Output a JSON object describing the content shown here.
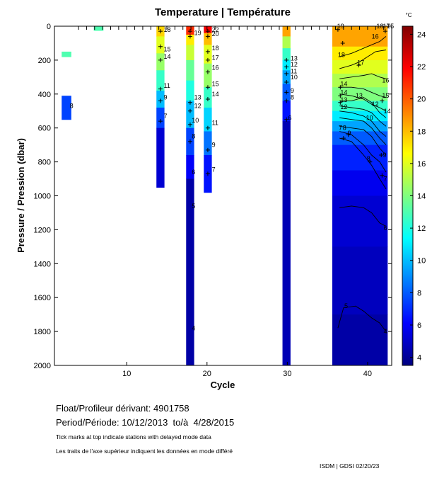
{
  "chart_data": {
    "type": "heatmap",
    "title": "Temperature | Température",
    "xlabel": "Cycle",
    "ylabel": "Pressure / Pression (dbar)",
    "xlim": [
      1,
      43
    ],
    "ylim": [
      0,
      2000
    ],
    "y_inverted": true,
    "x_ticks": [
      10,
      20,
      30,
      40
    ],
    "y_ticks": [
      0,
      200,
      400,
      600,
      800,
      1000,
      1200,
      1400,
      1600,
      1800,
      2000
    ],
    "colorbar": {
      "unit": "°C",
      "range": [
        3.5,
        24.5
      ],
      "ticks": [
        4,
        6,
        8,
        10,
        12,
        14,
        16,
        18,
        20,
        22,
        24
      ],
      "colors": [
        "#00007f",
        "#0000ff",
        "#007fff",
        "#00ffff",
        "#7fff7f",
        "#ffff00",
        "#ff7f00",
        "#ff0000",
        "#7f0000"
      ]
    },
    "delayed_mode_cycles": [
      4,
      5,
      6,
      7,
      8,
      9,
      10,
      11,
      12,
      13,
      14,
      15,
      16,
      17,
      18,
      19,
      20,
      21,
      22,
      23,
      24,
      25,
      26,
      27,
      28,
      29,
      30,
      31,
      32,
      33,
      34,
      35,
      36,
      37,
      38,
      39,
      40,
      41,
      42,
      43
    ],
    "profiles": [
      {
        "cycle": 2.5,
        "width": 1.2,
        "bins": [
          [
            150,
            180,
            13
          ]
        ]
      },
      {
        "cycle": 2.5,
        "width": 1.2,
        "bins": [
          [
            410,
            550,
            7.5
          ]
        ]
      },
      {
        "cycle": 6.5,
        "width": 1.2,
        "bins": [
          [
            0,
            25,
            13
          ]
        ]
      },
      {
        "cycle": 14.2,
        "width": 1.0,
        "bins": [
          [
            0,
            60,
            17.5
          ],
          [
            60,
            160,
            16
          ],
          [
            160,
            260,
            14.5
          ],
          [
            260,
            380,
            12.5
          ],
          [
            380,
            480,
            10
          ],
          [
            480,
            600,
            7.5
          ],
          [
            600,
            950,
            5.2
          ]
        ]
      },
      {
        "cycle": 17.9,
        "width": 1.0,
        "bins": [
          [
            0,
            50,
            21
          ],
          [
            50,
            110,
            17
          ],
          [
            110,
            200,
            15.5
          ],
          [
            200,
            320,
            13.5
          ],
          [
            320,
            440,
            12
          ],
          [
            440,
            600,
            10
          ],
          [
            600,
            760,
            7.5
          ],
          [
            760,
            900,
            6
          ],
          [
            900,
            2000,
            4.3
          ]
        ]
      },
      {
        "cycle": 20.1,
        "width": 1.0,
        "bins": [
          [
            0,
            40,
            22
          ],
          [
            40,
            110,
            18
          ],
          [
            110,
            220,
            16
          ],
          [
            220,
            360,
            14.5
          ],
          [
            360,
            480,
            12.5
          ],
          [
            480,
            620,
            10.5
          ],
          [
            620,
            760,
            8.5
          ],
          [
            760,
            980,
            6.5
          ]
        ]
      },
      {
        "cycle": 29.9,
        "width": 1.0,
        "bins": [
          [
            0,
            60,
            18.5
          ],
          [
            60,
            130,
            15
          ],
          [
            130,
            200,
            12.5
          ],
          [
            200,
            260,
            11
          ],
          [
            260,
            340,
            9.5
          ],
          [
            340,
            440,
            8
          ],
          [
            440,
            560,
            6.5
          ],
          [
            560,
            2000,
            4.6
          ]
        ]
      }
    ],
    "surface_section": {
      "x_start": 35.6,
      "x_end": 42.5,
      "layers": [
        {
          "top": 0,
          "bottom": 120,
          "temp": 18.5
        },
        {
          "top": 120,
          "bottom": 200,
          "temp": 17
        },
        {
          "top": 200,
          "bottom": 280,
          "temp": 16
        },
        {
          "top": 280,
          "bottom": 360,
          "temp": 15
        },
        {
          "top": 360,
          "bottom": 440,
          "temp": 14
        },
        {
          "top": 440,
          "bottom": 500,
          "temp": 12.5
        },
        {
          "top": 500,
          "bottom": 560,
          "temp": 11
        },
        {
          "top": 560,
          "bottom": 620,
          "temp": 9.5
        },
        {
          "top": 620,
          "bottom": 700,
          "temp": 8
        },
        {
          "top": 700,
          "bottom": 850,
          "temp": 6.8
        },
        {
          "top": 850,
          "bottom": 1000,
          "temp": 5.8
        },
        {
          "top": 1000,
          "bottom": 1300,
          "temp": 5.2
        },
        {
          "top": 1300,
          "bottom": 1700,
          "temp": 4.8
        },
        {
          "top": 1700,
          "bottom": 2000,
          "temp": 4.3
        }
      ]
    },
    "contours": [
      {
        "level": 18,
        "points": [
          [
            36.5,
            180
          ],
          [
            38,
            160
          ],
          [
            39.5,
            130
          ],
          [
            40.5,
            110
          ],
          [
            41.5,
            90
          ],
          [
            42.3,
            60
          ]
        ]
      },
      {
        "level": 17,
        "points": [
          [
            36.5,
            250
          ],
          [
            38,
            230
          ],
          [
            39,
            210
          ],
          [
            40,
            180
          ],
          [
            41,
            150
          ],
          [
            42.3,
            140
          ]
        ]
      },
      {
        "level": 16,
        "points": [
          [
            36.5,
            310
          ],
          [
            38,
            300
          ],
          [
            39.5,
            290
          ],
          [
            40.5,
            280
          ],
          [
            41.5,
            300
          ],
          [
            42.3,
            310
          ]
        ]
      },
      {
        "level": 15,
        "points": [
          [
            36.5,
            360
          ],
          [
            38,
            360
          ],
          [
            39.5,
            370
          ],
          [
            40.5,
            390
          ],
          [
            41.5,
            410
          ],
          [
            42.3,
            420
          ]
        ]
      },
      {
        "level": 14,
        "points": [
          [
            36.5,
            400
          ],
          [
            38,
            410
          ],
          [
            39.5,
            430
          ],
          [
            40.5,
            460
          ],
          [
            41.5,
            480
          ],
          [
            42.3,
            500
          ]
        ]
      },
      {
        "level": 13,
        "points": [
          [
            36.5,
            440
          ],
          [
            38,
            440
          ],
          [
            39.5,
            420
          ],
          [
            40.5,
            450
          ],
          [
            41.5,
            510
          ],
          [
            42.3,
            540
          ]
        ]
      },
      {
        "level": 12,
        "points": [
          [
            36.5,
            470
          ],
          [
            38,
            480
          ],
          [
            39.5,
            490
          ],
          [
            40.5,
            510
          ],
          [
            41.5,
            560
          ],
          [
            42.3,
            590
          ]
        ]
      },
      {
        "level": 11,
        "points": [
          [
            36.5,
            500
          ],
          [
            38,
            510
          ],
          [
            39.5,
            530
          ],
          [
            40.5,
            560
          ],
          [
            41.5,
            620
          ],
          [
            42.3,
            650
          ]
        ]
      },
      {
        "level": 10,
        "points": [
          [
            36.5,
            540
          ],
          [
            38,
            550
          ],
          [
            39.5,
            560
          ],
          [
            40.5,
            600
          ],
          [
            41.5,
            660
          ],
          [
            42.3,
            700
          ]
        ]
      },
      {
        "level": 9,
        "points": [
          [
            36.5,
            590
          ],
          [
            38,
            600
          ],
          [
            39.5,
            610
          ],
          [
            40.5,
            650
          ],
          [
            41.5,
            720
          ],
          [
            42.3,
            760
          ]
        ]
      },
      {
        "level": 8,
        "points": [
          [
            36.5,
            620
          ],
          [
            38,
            640
          ],
          [
            39.5,
            700
          ],
          [
            40.5,
            760
          ],
          [
            41.5,
            800
          ],
          [
            42.3,
            860
          ]
        ]
      },
      {
        "level": 7,
        "points": [
          [
            36.5,
            660
          ],
          [
            38,
            680
          ],
          [
            39.5,
            760
          ],
          [
            40.5,
            820
          ],
          [
            41.5,
            900
          ],
          [
            42.3,
            960
          ]
        ]
      },
      {
        "level": 6,
        "points": [
          [
            36.5,
            1070
          ],
          [
            38,
            1060
          ],
          [
            39.5,
            1070
          ],
          [
            40.5,
            1100
          ],
          [
            41.5,
            1160
          ],
          [
            42.3,
            1180
          ]
        ]
      },
      {
        "level": 5,
        "points": [
          [
            36.3,
            1780
          ],
          [
            37,
            1660
          ],
          [
            38.5,
            1650
          ],
          [
            39.5,
            1680
          ],
          [
            40.5,
            1720
          ],
          [
            41.5,
            1750
          ],
          [
            42.3,
            1800
          ]
        ]
      }
    ],
    "plot_labels": [
      {
        "x": 2.9,
        "y": 470,
        "text": "8"
      },
      {
        "x": 14.6,
        "y": 20,
        "text": "18"
      },
      {
        "x": 14.6,
        "y": 135,
        "text": "15"
      },
      {
        "x": 14.6,
        "y": 180,
        "text": "14"
      },
      {
        "x": 14.6,
        "y": 350,
        "text": "11"
      },
      {
        "x": 14.6,
        "y": 420,
        "text": "9"
      },
      {
        "x": 14.6,
        "y": 530,
        "text": "7"
      },
      {
        "x": 18.4,
        "y": 40,
        "text": "19"
      },
      {
        "x": 18.4,
        "y": 420,
        "text": "13"
      },
      {
        "x": 18.4,
        "y": 470,
        "text": "12"
      },
      {
        "x": 18.1,
        "y": 555,
        "text": "10"
      },
      {
        "x": 18.1,
        "y": 650,
        "text": "8"
      },
      {
        "x": 18.1,
        "y": 860,
        "text": "6"
      },
      {
        "x": 18.1,
        "y": 1060,
        "text": "5"
      },
      {
        "x": 18.1,
        "y": 1780,
        "text": "4"
      },
      {
        "x": 20.6,
        "y": 20,
        "text": "22"
      },
      {
        "x": 20.6,
        "y": 45,
        "text": "20"
      },
      {
        "x": 20.6,
        "y": 130,
        "text": "18"
      },
      {
        "x": 20.6,
        "y": 185,
        "text": "17"
      },
      {
        "x": 20.6,
        "y": 245,
        "text": "16"
      },
      {
        "x": 20.6,
        "y": 340,
        "text": "15"
      },
      {
        "x": 20.6,
        "y": 400,
        "text": "14"
      },
      {
        "x": 20.6,
        "y": 570,
        "text": "11"
      },
      {
        "x": 20.6,
        "y": 700,
        "text": "9"
      },
      {
        "x": 20.6,
        "y": 845,
        "text": "7"
      },
      {
        "x": 30.4,
        "y": 190,
        "text": "13"
      },
      {
        "x": 30.4,
        "y": 225,
        "text": "12"
      },
      {
        "x": 30.4,
        "y": 265,
        "text": "11"
      },
      {
        "x": 30.4,
        "y": 300,
        "text": "10"
      },
      {
        "x": 30.4,
        "y": 380,
        "text": "9"
      },
      {
        "x": 30.4,
        "y": 420,
        "text": "8"
      },
      {
        "x": 30.1,
        "y": 540,
        "text": "6"
      },
      {
        "x": 36.2,
        "y": 0,
        "text": "19"
      },
      {
        "x": 36.3,
        "y": 170,
        "text": "18"
      },
      {
        "x": 38.7,
        "y": 215,
        "text": "17"
      },
      {
        "x": 36.6,
        "y": 340,
        "text": "14"
      },
      {
        "x": 36.6,
        "y": 390,
        "text": "14"
      },
      {
        "x": 36.6,
        "y": 435,
        "text": "13"
      },
      {
        "x": 36.6,
        "y": 475,
        "text": "12"
      },
      {
        "x": 38.5,
        "y": 410,
        "text": "13"
      },
      {
        "x": 40.5,
        "y": 460,
        "text": "12"
      },
      {
        "x": 39.8,
        "y": 540,
        "text": "10"
      },
      {
        "x": 41.8,
        "y": 320,
        "text": "16"
      },
      {
        "x": 41.8,
        "y": 410,
        "text": "15"
      },
      {
        "x": 42.0,
        "y": 500,
        "text": "14"
      },
      {
        "x": 36.4,
        "y": 600,
        "text": "7"
      },
      {
        "x": 36.9,
        "y": 600,
        "text": "8"
      },
      {
        "x": 37.5,
        "y": 630,
        "text": "9"
      },
      {
        "x": 39.9,
        "y": 780,
        "text": "8"
      },
      {
        "x": 41.9,
        "y": 760,
        "text": "9"
      },
      {
        "x": 42.0,
        "y": 900,
        "text": "7"
      },
      {
        "x": 42.0,
        "y": 1190,
        "text": "6"
      },
      {
        "x": 37.1,
        "y": 1650,
        "text": "5"
      },
      {
        "x": 42.0,
        "y": 1800,
        "text": "4"
      },
      {
        "x": 41.1,
        "y": 0,
        "text": "18"
      },
      {
        "x": 41.9,
        "y": 0,
        "text": "17"
      },
      {
        "x": 42.4,
        "y": 0,
        "text": "15"
      },
      {
        "x": 40.5,
        "y": 60,
        "text": "16"
      }
    ],
    "sample_markers": [
      [
        14.2,
        30
      ],
      [
        14.2,
        120
      ],
      [
        14.2,
        200
      ],
      [
        14.2,
        370
      ],
      [
        14.2,
        440
      ],
      [
        14.2,
        560
      ],
      [
        17.9,
        30
      ],
      [
        17.9,
        60
      ],
      [
        17.9,
        450
      ],
      [
        17.9,
        500
      ],
      [
        17.9,
        580
      ],
      [
        17.9,
        680
      ],
      [
        20.1,
        30
      ],
      [
        20.1,
        60
      ],
      [
        20.1,
        150
      ],
      [
        20.1,
        200
      ],
      [
        20.1,
        270
      ],
      [
        20.1,
        360
      ],
      [
        20.1,
        430
      ],
      [
        20.1,
        600
      ],
      [
        20.1,
        730
      ],
      [
        20.1,
        870
      ],
      [
        29.9,
        200
      ],
      [
        29.9,
        240
      ],
      [
        29.9,
        280
      ],
      [
        29.9,
        330
      ],
      [
        29.9,
        390
      ],
      [
        29.9,
        440
      ],
      [
        29.9,
        550
      ],
      [
        36.3,
        20
      ],
      [
        36.9,
        100
      ],
      [
        38.9,
        230
      ],
      [
        36.6,
        360
      ],
      [
        36.6,
        410
      ],
      [
        36.6,
        450
      ],
      [
        37.6,
        640
      ],
      [
        37.0,
        660
      ],
      [
        40.3,
        800
      ],
      [
        41.7,
        760
      ],
      [
        41.8,
        880
      ],
      [
        41.8,
        440
      ],
      [
        42.2,
        30
      ]
    ]
  },
  "info": {
    "float_label": "Float/Profileur dérivant:",
    "float_id": "4901758",
    "period_label": "Period/Période:",
    "period_value": "10/12/2013  to/à  4/28/2015",
    "note_en": "Tick marks at top indicate stations with delayed mode data",
    "note_fr": "Les traits de l'axe supérieur indiquent les données en mode différé",
    "credit": "ISDM | GDSI  02/20/23"
  }
}
